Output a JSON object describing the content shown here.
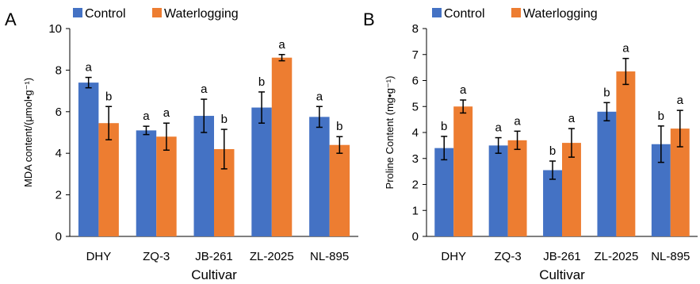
{
  "colors": {
    "control": "#4472C4",
    "waterlogging": "#ED7D31",
    "axis": "#000000"
  },
  "chart_data": [
    {
      "type": "bar",
      "panel_label": "A",
      "categories": [
        "DHY",
        "ZQ-3",
        "JB-261",
        "ZL-2025",
        "NL-895"
      ],
      "xlabel": "Cultivar",
      "ylabel": "MDA content/(μmol•g⁻¹)",
      "ylim": [
        0,
        10
      ],
      "yticks": [
        "0",
        "2",
        "4",
        "6",
        "8",
        "10"
      ],
      "legend": "top",
      "grid": false,
      "series": [
        {
          "name": "Control",
          "values": [
            7.4,
            5.1,
            5.8,
            6.2,
            5.75
          ],
          "errors": [
            0.25,
            0.2,
            0.8,
            0.75,
            0.5
          ],
          "sig": [
            "a",
            "a",
            "a",
            "b",
            "a"
          ]
        },
        {
          "name": "Waterlogging",
          "values": [
            5.45,
            4.8,
            4.2,
            8.6,
            4.4
          ],
          "errors": [
            0.8,
            0.65,
            0.95,
            0.15,
            0.4
          ],
          "sig": [
            "b",
            "a",
            "b",
            "a",
            "b"
          ]
        }
      ]
    },
    {
      "type": "bar",
      "panel_label": "B",
      "categories": [
        "DHY",
        "ZQ-3",
        "JB-261",
        "ZL-2025",
        "NL-895"
      ],
      "xlabel": "Cultivar",
      "ylabel": "Proline Content (mg•g⁻¹)",
      "ylim": [
        0,
        8
      ],
      "yticks": [
        "0",
        "1",
        "2",
        "3",
        "4",
        "5",
        "6",
        "7",
        "8"
      ],
      "legend": "top",
      "grid": false,
      "series": [
        {
          "name": "Control",
          "values": [
            3.4,
            3.5,
            2.55,
            4.8,
            3.55
          ],
          "errors": [
            0.45,
            0.3,
            0.35,
            0.35,
            0.7
          ],
          "sig": [
            "b",
            "a",
            "b",
            "b",
            "b"
          ]
        },
        {
          "name": "Waterlogging",
          "values": [
            5.0,
            3.7,
            3.6,
            6.35,
            4.15
          ],
          "errors": [
            0.25,
            0.35,
            0.55,
            0.5,
            0.7
          ],
          "sig": [
            "a",
            "a",
            "a",
            "a",
            "a"
          ]
        }
      ]
    }
  ]
}
